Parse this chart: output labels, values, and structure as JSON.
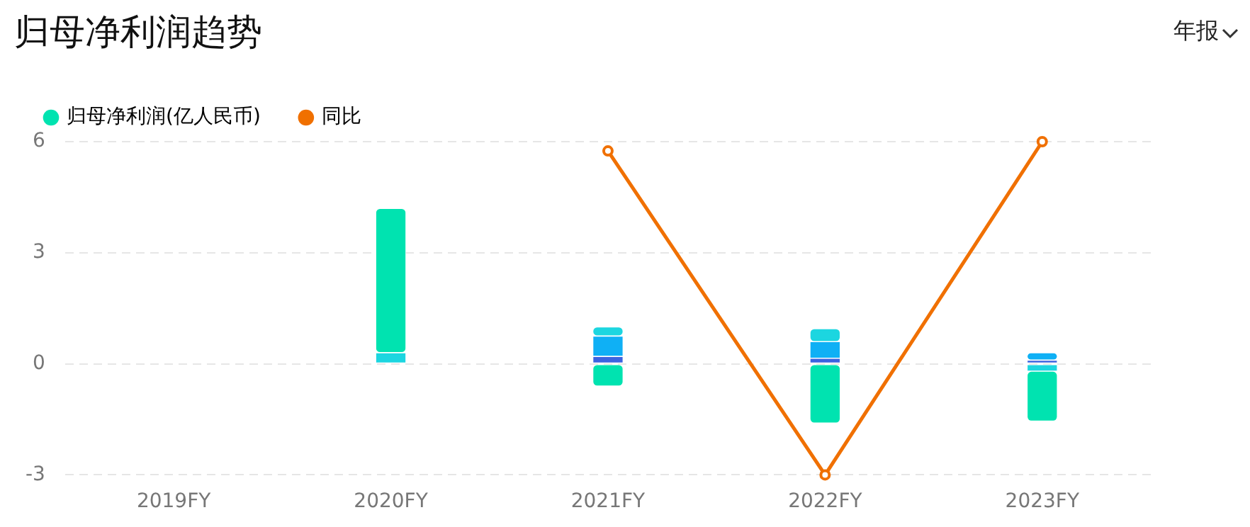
{
  "chart_data": {
    "type": "bar",
    "title": "归母净利润趋势",
    "annotations": [
      "年报"
    ],
    "categories": [
      "2019FY",
      "2020FY",
      "2021FY",
      "2022FY",
      "2023FY"
    ],
    "stacked": true,
    "ylim": [
      -3,
      6
    ],
    "yticks": [
      -3,
      0,
      3,
      6
    ],
    "grid": "y",
    "legend": "top left",
    "marker": "circle",
    "series": [
      {
        "color": "#3b63e0",
        "values": [
          null,
          0,
          0.2,
          0.15,
          0.1
        ]
      },
      {
        "color": "#0fb0f5",
        "values": [
          null,
          0,
          0.55,
          0.45,
          0.2
        ]
      },
      {
        "color": "#1cd6e0",
        "values": [
          null,
          0.3,
          0.25,
          0.35,
          -0.2
        ]
      },
      {
        "name": "归母净利润(亿人民币)",
        "color": "#00e3b0",
        "values": [
          null,
          3.9,
          -0.6,
          -1.6,
          -1.35
        ]
      },
      {
        "type": "line",
        "name": "同比",
        "color": "#f07000",
        "values": [
          null,
          null,
          5.75,
          -3,
          6
        ]
      }
    ]
  }
}
